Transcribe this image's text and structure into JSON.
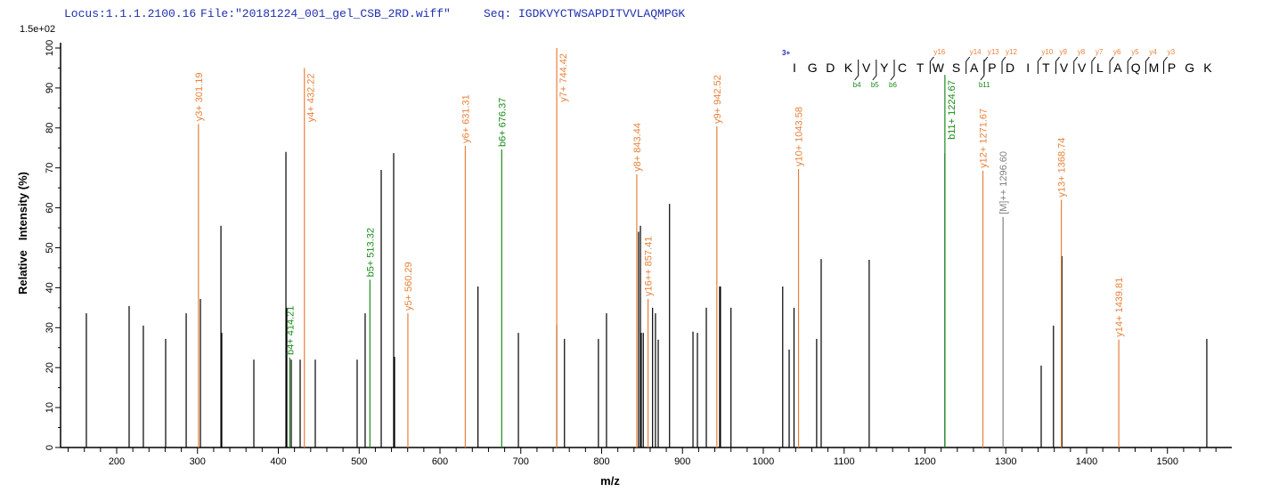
{
  "header": {
    "locus": "Locus:1.1.1.2100.16",
    "file": "File:\"20181224_001_gel_CSB_2RD.wiff\"",
    "seq": "Seq: IGDKVYCTWSAPDITVVLAQMPGK"
  },
  "chart_data": {
    "type": "bar",
    "title": "",
    "xlabel": "m/z",
    "ylabel": "Relative   Intensity (%)",
    "y_scale_label": "1.5e+02",
    "xlim": [
      130,
      1580
    ],
    "ylim": [
      0,
      100
    ],
    "xticks": [
      200,
      300,
      400,
      500,
      600,
      700,
      800,
      900,
      1000,
      1100,
      1200,
      1300,
      1400,
      1500
    ],
    "yticks": [
      0,
      10,
      20,
      30,
      40,
      50,
      60,
      70,
      80,
      90,
      100
    ],
    "grid": false,
    "colors": {
      "y": "#e8803a",
      "b": "#1a8a1a",
      "precursor": "#808080",
      "unassigned": "#000000",
      "title": "#1f2fb0"
    },
    "peaks": [
      {
        "mz": 162.5,
        "i": 33.6
      },
      {
        "mz": 215.4,
        "i": 35.4
      },
      {
        "mz": 233,
        "i": 30.5
      },
      {
        "mz": 260.6,
        "i": 27.2
      },
      {
        "mz": 286,
        "i": 33.6
      },
      {
        "mz": 303.6,
        "i": 37.2
      },
      {
        "mz": 329,
        "i": 55.5
      },
      {
        "mz": 330,
        "i": 28.7
      },
      {
        "mz": 369.7,
        "i": 22
      },
      {
        "mz": 409.4,
        "i": 74
      },
      {
        "mz": 410.5,
        "i": 35
      },
      {
        "mz": 416,
        "i": 22
      },
      {
        "mz": 427,
        "i": 22
      },
      {
        "mz": 445.7,
        "i": 22
      },
      {
        "mz": 497.5,
        "i": 22
      },
      {
        "mz": 507.4,
        "i": 33.6
      },
      {
        "mz": 527.3,
        "i": 69.5
      },
      {
        "mz": 542.7,
        "i": 73.7
      },
      {
        "mz": 543.8,
        "i": 22.7
      },
      {
        "mz": 647,
        "i": 40.3
      },
      {
        "mz": 697,
        "i": 28.7
      },
      {
        "mz": 744.4,
        "i": 30.7
      },
      {
        "mz": 754,
        "i": 27.2
      },
      {
        "mz": 796,
        "i": 27.2
      },
      {
        "mz": 806,
        "i": 33.6
      },
      {
        "mz": 845.7,
        "i": 54
      },
      {
        "mz": 848,
        "i": 55.5
      },
      {
        "mz": 849,
        "i": 28.7
      },
      {
        "mz": 851.5,
        "i": 28.7
      },
      {
        "mz": 863,
        "i": 35
      },
      {
        "mz": 866.6,
        "i": 33.6
      },
      {
        "mz": 870,
        "i": 27
      },
      {
        "mz": 884,
        "i": 61
      },
      {
        "mz": 913,
        "i": 29
      },
      {
        "mz": 918.5,
        "i": 28.7
      },
      {
        "mz": 929.5,
        "i": 35
      },
      {
        "mz": 946,
        "i": 40.3
      },
      {
        "mz": 947,
        "i": 40.3
      },
      {
        "mz": 960,
        "i": 35
      },
      {
        "mz": 1024,
        "i": 40.3
      },
      {
        "mz": 1032,
        "i": 24.5
      },
      {
        "mz": 1038,
        "i": 35
      },
      {
        "mz": 1066,
        "i": 27.2
      },
      {
        "mz": 1071.6,
        "i": 47.2
      },
      {
        "mz": 1131,
        "i": 47
      },
      {
        "mz": 1224.7,
        "i": 73.7
      },
      {
        "mz": 1343.8,
        "i": 20.5
      },
      {
        "mz": 1359,
        "i": 30.5
      },
      {
        "mz": 1369.5,
        "i": 47.9
      },
      {
        "mz": 1548.7,
        "i": 27.2
      }
    ],
    "annotated": [
      {
        "mz": 301.19,
        "i": 81,
        "kind": "y",
        "label": "y3+ 301.19"
      },
      {
        "mz": 414.21,
        "i": 22.5,
        "kind": "b",
        "label": "b4+ 414.21"
      },
      {
        "mz": 432.22,
        "i": 95,
        "kind": "y",
        "label": "y4+ 432.22"
      },
      {
        "mz": 513.32,
        "i": 42,
        "kind": "b",
        "label": "b5+ 513.32"
      },
      {
        "mz": 560.29,
        "i": 33.6,
        "kind": "y",
        "label": "y5+ 560.29"
      },
      {
        "mz": 631.31,
        "i": 75.5,
        "kind": "y",
        "label": "y6+ 631.31"
      },
      {
        "mz": 676.37,
        "i": 74.6,
        "kind": "b",
        "label": "b6+ 676.37"
      },
      {
        "mz": 744.42,
        "i": 100,
        "kind": "y",
        "label": "y7+ 744.42"
      },
      {
        "mz": 843.44,
        "i": 68.4,
        "kind": "y",
        "label": "y8+ 843.44"
      },
      {
        "mz": 857.41,
        "i": 37.2,
        "kind": "y",
        "label": "y16++ 857.41"
      },
      {
        "mz": 942.52,
        "i": 80.4,
        "kind": "y",
        "label": "y9+ 942.52"
      },
      {
        "mz": 1043.58,
        "i": 69.7,
        "kind": "y",
        "label": "y10+ 1043.58"
      },
      {
        "mz": 1224.67,
        "i": 93.3,
        "kind": "b",
        "label": "b11+ 1224.67"
      },
      {
        "mz": 1271.67,
        "i": 69.3,
        "kind": "y",
        "label": "y12+ 1271.67"
      },
      {
        "mz": 1296.6,
        "i": 57.7,
        "kind": "precursor",
        "label": "[M]++ 1296.60"
      },
      {
        "mz": 1368.74,
        "i": 62,
        "kind": "y",
        "label": "y13+ 1368.74"
      },
      {
        "mz": 1439.81,
        "i": 27,
        "kind": "y",
        "label": "y14+ 1439.81"
      }
    ]
  },
  "sequence": {
    "charge": "3+",
    "residues": [
      "I",
      "G",
      "D",
      "K",
      "V",
      "Y",
      "C",
      "T",
      "W",
      "S",
      "A",
      "P",
      "D",
      "I",
      "T",
      "V",
      "V",
      "L",
      "A",
      "Q",
      "M",
      "P",
      "G",
      "K"
    ],
    "y_marks": [
      {
        "at": 8,
        "label": "y16"
      },
      {
        "at": 10,
        "label": "y14"
      },
      {
        "at": 11,
        "label": "y13"
      },
      {
        "at": 12,
        "label": "y12"
      },
      {
        "at": 14,
        "label": "y10"
      },
      {
        "at": 15,
        "label": "y9"
      },
      {
        "at": 16,
        "label": "y8"
      },
      {
        "at": 17,
        "label": "y7"
      },
      {
        "at": 18,
        "label": "y6"
      },
      {
        "at": 19,
        "label": "y5"
      },
      {
        "at": 20,
        "label": "y4"
      },
      {
        "at": 21,
        "label": "y3"
      }
    ],
    "b_marks": [
      {
        "at": 4,
        "label": "b4"
      },
      {
        "at": 5,
        "label": "b5"
      },
      {
        "at": 6,
        "label": "b6"
      },
      {
        "at": 11,
        "label": "b11"
      }
    ]
  }
}
